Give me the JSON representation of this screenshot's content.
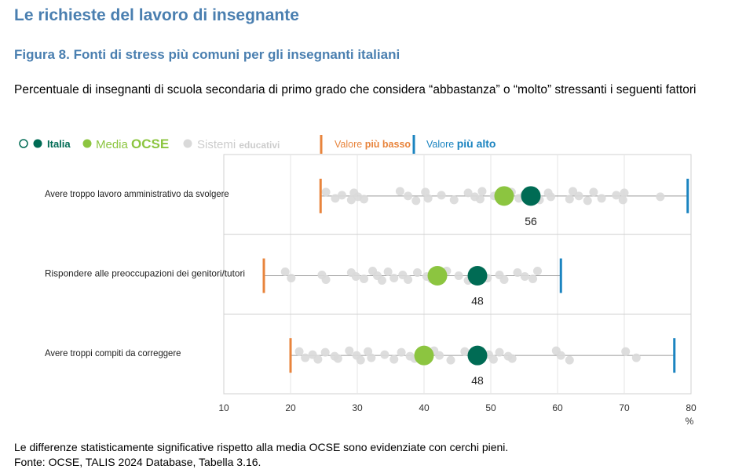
{
  "header": {
    "section_title": "Le richieste del lavoro di insegnante",
    "figure_title": "Figura 8. Fonti di stress più comuni per gli insegnanti italiani",
    "subtitle": "Percentuale di insegnanti di scuola secondaria di primo grado che considera “abbastanza” o “molto” stressanti i seguenti fattori"
  },
  "legend": {
    "italia": "Italia",
    "media_prefix": "Media",
    "media_bold": "OCSE",
    "sistemi_prefix": "Sistemi",
    "sistemi_bold": "educativi",
    "lowest_prefix": "Valore",
    "lowest_bold": "più basso",
    "highest_prefix": "Valore",
    "highest_bold": "più alto"
  },
  "colors": {
    "title": "#4a7fb0",
    "italia": "#006b54",
    "media": "#8cc540",
    "systems": "#d9d9d9",
    "lowest": "#e8843c",
    "highest": "#1b84c0",
    "range_line": "#9a9a9a",
    "border": "#d0d0d0"
  },
  "chart_data": {
    "type": "scatter",
    "xlim": [
      10,
      80
    ],
    "xticks": [
      "10",
      "20",
      "30",
      "40",
      "50",
      "60",
      "70",
      "80"
    ],
    "xunit": "%",
    "grid": true,
    "legend_position": "top-left",
    "series_names": [
      "Italia",
      "Media OCSE",
      "Sistemi educativi",
      "Valore più basso",
      "Valore più alto"
    ],
    "rows": [
      {
        "label": "Avere troppo lavoro amministrativo da svolgere",
        "italia": 56,
        "italia_label": "56",
        "media": 52,
        "min": 24.5,
        "max": 79.5,
        "systems": [
          25.3,
          26.7,
          27.7,
          29.1,
          29.5,
          30.1,
          31.0,
          36.4,
          37.6,
          38.8,
          40.2,
          40.6,
          42.6,
          44.5,
          46.6,
          47.6,
          48.4,
          48.7,
          50.5,
          51.5,
          53.1,
          54.2,
          55.0,
          57.3,
          58.6,
          59.0,
          61.8,
          62.3,
          63.2,
          64.5,
          65.4,
          66.6,
          68.8,
          69.8,
          70.0,
          75.4
        ]
      },
      {
        "label": "Rispondere alle preoccupazioni dei genitori/tutori",
        "italia": 48,
        "italia_label": "48",
        "media": 42,
        "min": 16,
        "max": 60.5,
        "systems": [
          19.2,
          20.1,
          24.7,
          25.3,
          29.1,
          29.8,
          31.0,
          32.3,
          33.0,
          33.7,
          34.6,
          35.5,
          36.8,
          37.6,
          39.0,
          40.4,
          41.1,
          43.4,
          45.2,
          46.6,
          47.4,
          49.5,
          51.3,
          52.0,
          54.0,
          55.1,
          56.3,
          57.0
        ]
      },
      {
        "label": "Avere troppi compiti da correggere",
        "italia": 48,
        "italia_label": "48",
        "media": 40,
        "min": 20,
        "max": 77.5,
        "systems": [
          21.3,
          22.2,
          23.3,
          24.1,
          25.2,
          26.6,
          27.1,
          28.8,
          29.9,
          30.5,
          31.6,
          32.1,
          34.1,
          35.5,
          36.6,
          37.9,
          38.6,
          41.5,
          42.3,
          44.0,
          46.1,
          47.5,
          49.7,
          50.4,
          51.3,
          52.6,
          53.2,
          59.8,
          60.5,
          61.8,
          70.2,
          71.8
        ]
      }
    ]
  },
  "notes": {
    "line1": "Le differenze statisticamente significative rispetto alla media OCSE sono evidenziate con cerchi pieni.",
    "line2": "Fonte: OCSE, TALIS 2024 Database, Tabella 3.16."
  }
}
